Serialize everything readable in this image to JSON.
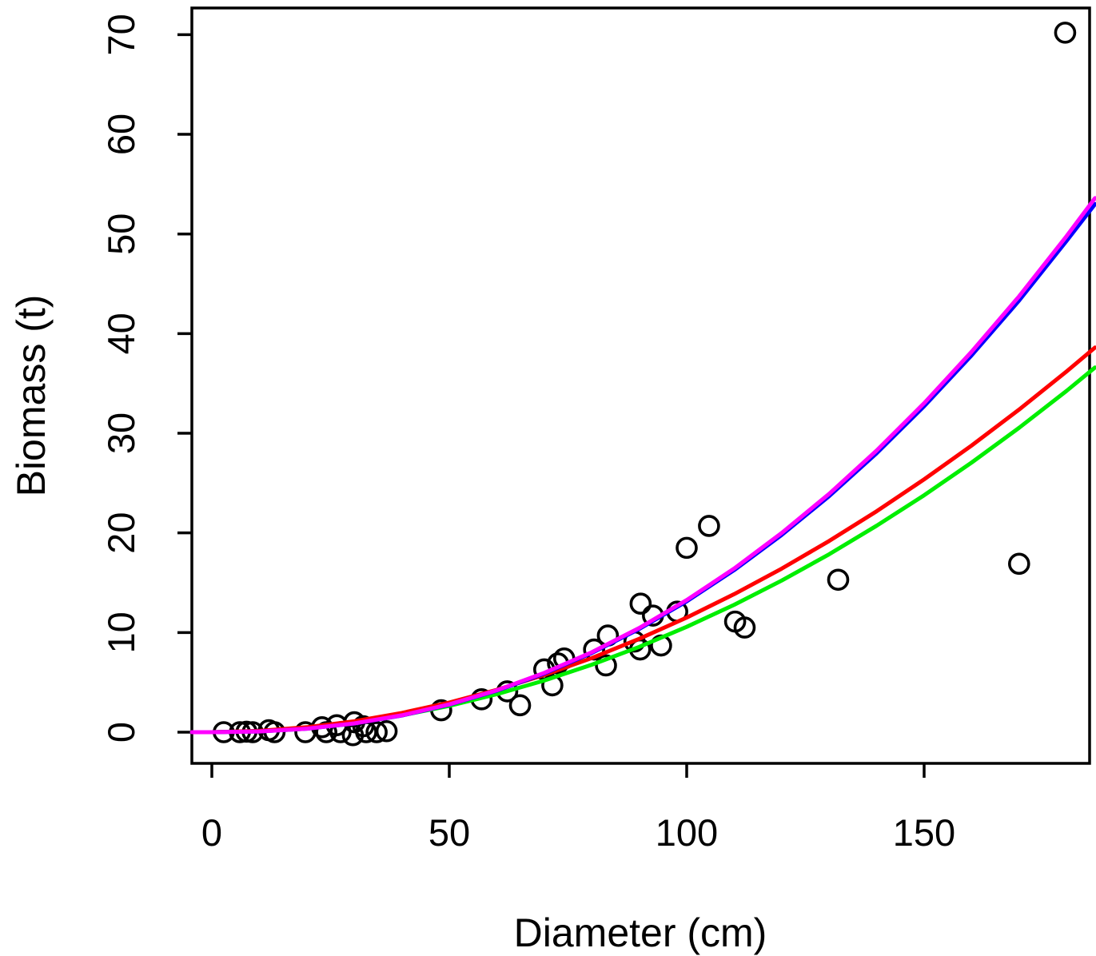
{
  "figure": {
    "background": "#ffffff",
    "foreground": "#000000"
  },
  "chart_data": {
    "type": "scatter",
    "title": "",
    "xlabel": "Diameter (cm)",
    "ylabel": "Biomass (t)",
    "x_ticks": [
      0,
      50,
      100,
      150
    ],
    "y_ticks": [
      0,
      10,
      20,
      30,
      40,
      50,
      60,
      70
    ],
    "xlim": [
      -4.2,
      184.8
    ],
    "ylim": [
      -3.1,
      72.7
    ],
    "grid": false,
    "legend": "none",
    "point_style": {
      "shape": "open-circle",
      "color": "#000000"
    },
    "points": [
      [
        2.5,
        0
      ],
      [
        5.9,
        0
      ],
      [
        7.3,
        0.05
      ],
      [
        8.6,
        0
      ],
      [
        12.0,
        0.2
      ],
      [
        13.2,
        0
      ],
      [
        19.7,
        0
      ],
      [
        23.2,
        0.5
      ],
      [
        24.1,
        0
      ],
      [
        26.3,
        0.7
      ],
      [
        27.1,
        0
      ],
      [
        29.7,
        -0.3
      ],
      [
        30.0,
        1.0
      ],
      [
        31.9,
        0.6
      ],
      [
        32.5,
        0
      ],
      [
        34.7,
        0
      ],
      [
        36.8,
        0.1
      ],
      [
        48.3,
        2.2
      ],
      [
        56.8,
        3.3
      ],
      [
        62.2,
        4.1
      ],
      [
        64.9,
        2.7
      ],
      [
        70.0,
        6.3
      ],
      [
        71.7,
        4.7
      ],
      [
        72.9,
        6.9
      ],
      [
        74.2,
        7.4
      ],
      [
        80.5,
        8.3
      ],
      [
        83.0,
        6.7
      ],
      [
        83.4,
        9.7
      ],
      [
        89.0,
        9.1
      ],
      [
        90.2,
        8.3
      ],
      [
        94.6,
        8.7
      ],
      [
        90.3,
        12.9
      ],
      [
        92.9,
        11.7
      ],
      [
        98.0,
        12.1
      ],
      [
        100.0,
        18.5
      ],
      [
        104.7,
        20.7
      ],
      [
        110.2,
        11.1
      ],
      [
        112.2,
        10.5
      ],
      [
        131.9,
        15.3
      ],
      [
        170.0,
        16.9
      ],
      [
        179.7,
        70.2
      ]
    ],
    "curve_x": [
      -4.2,
      0,
      10,
      20,
      30,
      40,
      50,
      60,
      70,
      80,
      90,
      100,
      110,
      120,
      130,
      140,
      150,
      160,
      170,
      180,
      186
    ],
    "curves": [
      {
        "name": "green-curve",
        "color": "#00ee00",
        "y": [
          0,
          0,
          0.11,
          0.42,
          0.95,
          1.69,
          2.64,
          3.81,
          5.18,
          6.77,
          8.56,
          10.57,
          12.79,
          15.22,
          17.86,
          20.72,
          23.78,
          27.06,
          30.55,
          34.25,
          36.6
        ]
      },
      {
        "name": "red-curve",
        "color": "#ff0000",
        "y": [
          0,
          0,
          0.13,
          0.5,
          1.1,
          1.93,
          2.98,
          4.25,
          5.74,
          7.44,
          9.37,
          11.5,
          13.85,
          16.41,
          19.19,
          22.17,
          25.37,
          28.77,
          32.38,
          36.2,
          38.6
        ]
      },
      {
        "name": "blue-curve",
        "color": "#0000ff",
        "y": [
          0,
          0,
          0.07,
          0.35,
          0.87,
          1.67,
          2.76,
          4.16,
          5.89,
          7.95,
          10.36,
          13.13,
          16.27,
          19.8,
          23.69,
          28.0,
          32.71,
          37.82,
          43.32,
          49.31,
          53.0
        ]
      },
      {
        "name": "magenta-curve",
        "color": "#ff00ff",
        "y": [
          0,
          0,
          0.07,
          0.35,
          0.88,
          1.69,
          2.79,
          4.2,
          5.95,
          8.02,
          10.46,
          13.26,
          16.43,
          19.99,
          23.92,
          28.27,
          33.02,
          38.18,
          43.74,
          49.78,
          53.6
        ]
      }
    ]
  }
}
